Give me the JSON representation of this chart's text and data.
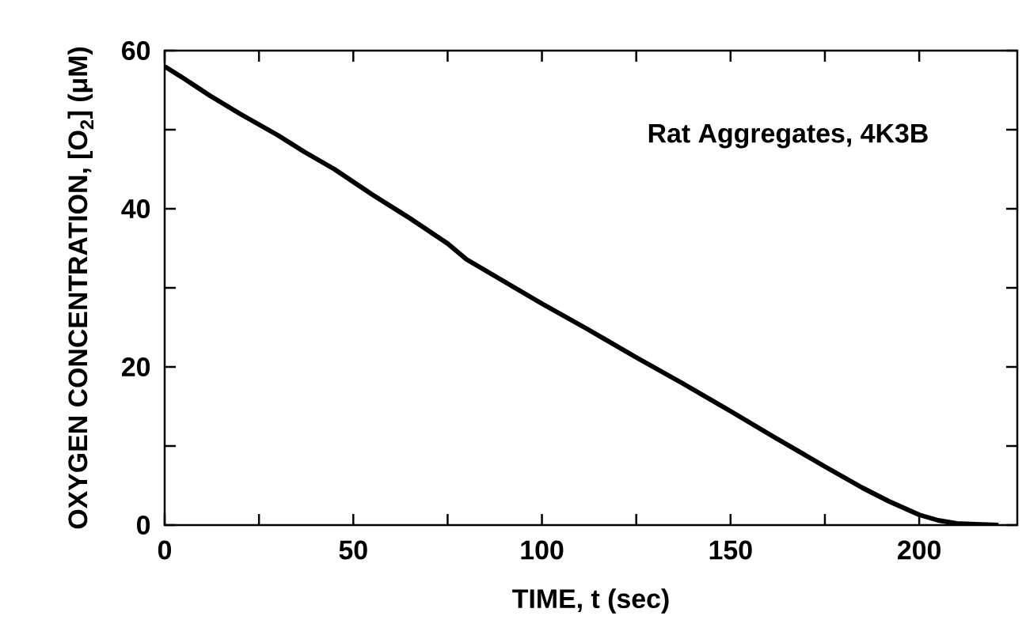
{
  "chart_data": {
    "type": "line",
    "xlabel": "TIME, t (sec)",
    "ylabel": "OXYGEN CONCENTRATION, [O$_{2}$]  (μM)",
    "annotations": [
      "Rat Aggregates, 4K3B"
    ],
    "x": [
      0,
      5,
      12,
      20,
      30,
      37,
      45,
      55,
      65,
      75,
      80,
      85,
      100,
      112,
      125,
      137,
      150,
      162,
      175,
      185,
      192,
      200,
      205,
      210,
      215,
      221
    ],
    "series": [
      {
        "color": "#000000",
        "values": [
          58,
          56.5,
          54.3,
          52,
          49.3,
          47.2,
          45,
          41.8,
          38.8,
          35.6,
          33.6,
          32.2,
          28,
          24.8,
          21.2,
          18,
          14.4,
          11,
          7.4,
          4.7,
          3,
          1.3,
          0.6,
          0.2,
          0.1,
          0
        ]
      }
    ],
    "xlim": [
      0,
      226
    ],
    "ylim": [
      0,
      60
    ],
    "xticks": [
      0,
      {
        "value": 25,
        "label": null
      },
      50,
      {
        "value": 75,
        "label": null
      },
      100,
      {
        "value": 125,
        "label": null
      },
      150,
      {
        "value": 175,
        "label": null
      },
      200
    ],
    "yticks": [
      0,
      {
        "value": 10,
        "label": null
      },
      20,
      {
        "value": 30,
        "label": null
      },
      40,
      {
        "value": 50,
        "label": null
      },
      60
    ],
    "marker": "none",
    "line_style": "solid"
  }
}
